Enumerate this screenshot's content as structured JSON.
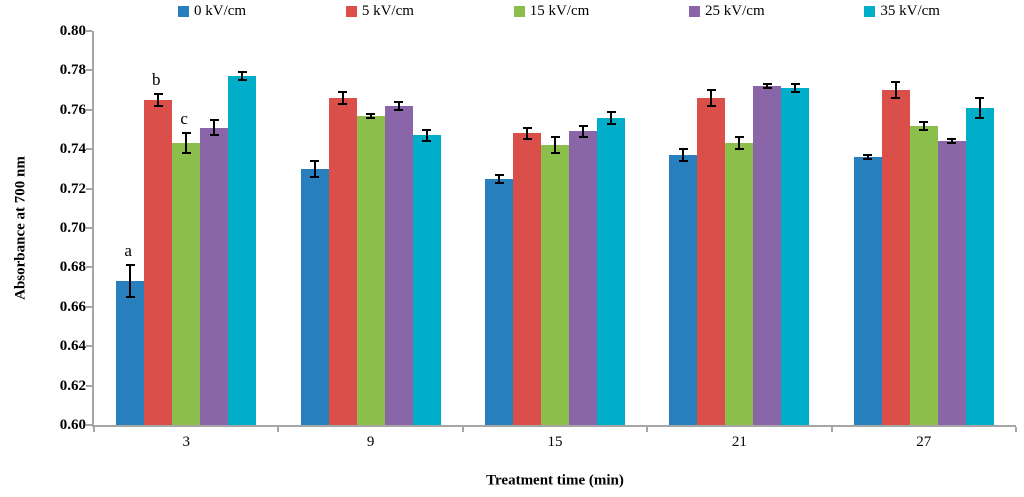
{
  "chart_data": {
    "type": "bar",
    "title": "",
    "xlabel": "Treatment time (min)",
    "ylabel": "Absorbance at 700 nm",
    "categories": [
      "3",
      "9",
      "15",
      "21",
      "27"
    ],
    "ylim": [
      0.6,
      0.8
    ],
    "ytick_step": 0.02,
    "y_ticks": [
      "0.60",
      "0.62",
      "0.64",
      "0.66",
      "0.68",
      "0.70",
      "0.72",
      "0.74",
      "0.76",
      "0.78",
      "0.80"
    ],
    "grid": false,
    "legend_position": "top",
    "axis_color": "#a6a6a6",
    "error_bar_color": "#000000",
    "series": [
      {
        "name": "0 kV/cm",
        "color": "#2780bd",
        "values": [
          0.673,
          0.73,
          0.725,
          0.737,
          0.736
        ],
        "errors": [
          0.008,
          0.004,
          0.002,
          0.003,
          0.001
        ]
      },
      {
        "name": "5 kV/cm",
        "color": "#da4f49",
        "values": [
          0.765,
          0.766,
          0.748,
          0.766,
          0.77
        ],
        "errors": [
          0.003,
          0.003,
          0.003,
          0.004,
          0.004
        ]
      },
      {
        "name": "15 kV/cm",
        "color": "#8cbe4c",
        "values": [
          0.743,
          0.757,
          0.742,
          0.743,
          0.752
        ],
        "errors": [
          0.005,
          0.001,
          0.004,
          0.003,
          0.002
        ]
      },
      {
        "name": "25 kV/cm",
        "color": "#8a65a8",
        "values": [
          0.751,
          0.762,
          0.749,
          0.772,
          0.744
        ],
        "errors": [
          0.004,
          0.002,
          0.003,
          0.001,
          0.001
        ]
      },
      {
        "name": "35 kV/cm",
        "color": "#00aec9",
        "values": [
          0.777,
          0.747,
          0.756,
          0.771,
          0.761
        ],
        "errors": [
          0.002,
          0.003,
          0.003,
          0.002,
          0.005
        ]
      }
    ],
    "annotations": [
      {
        "text": "a",
        "group": 0,
        "series": 0
      },
      {
        "text": "b",
        "group": 0,
        "series": 1
      },
      {
        "text": "c",
        "group": 0,
        "series": 2
      }
    ]
  }
}
